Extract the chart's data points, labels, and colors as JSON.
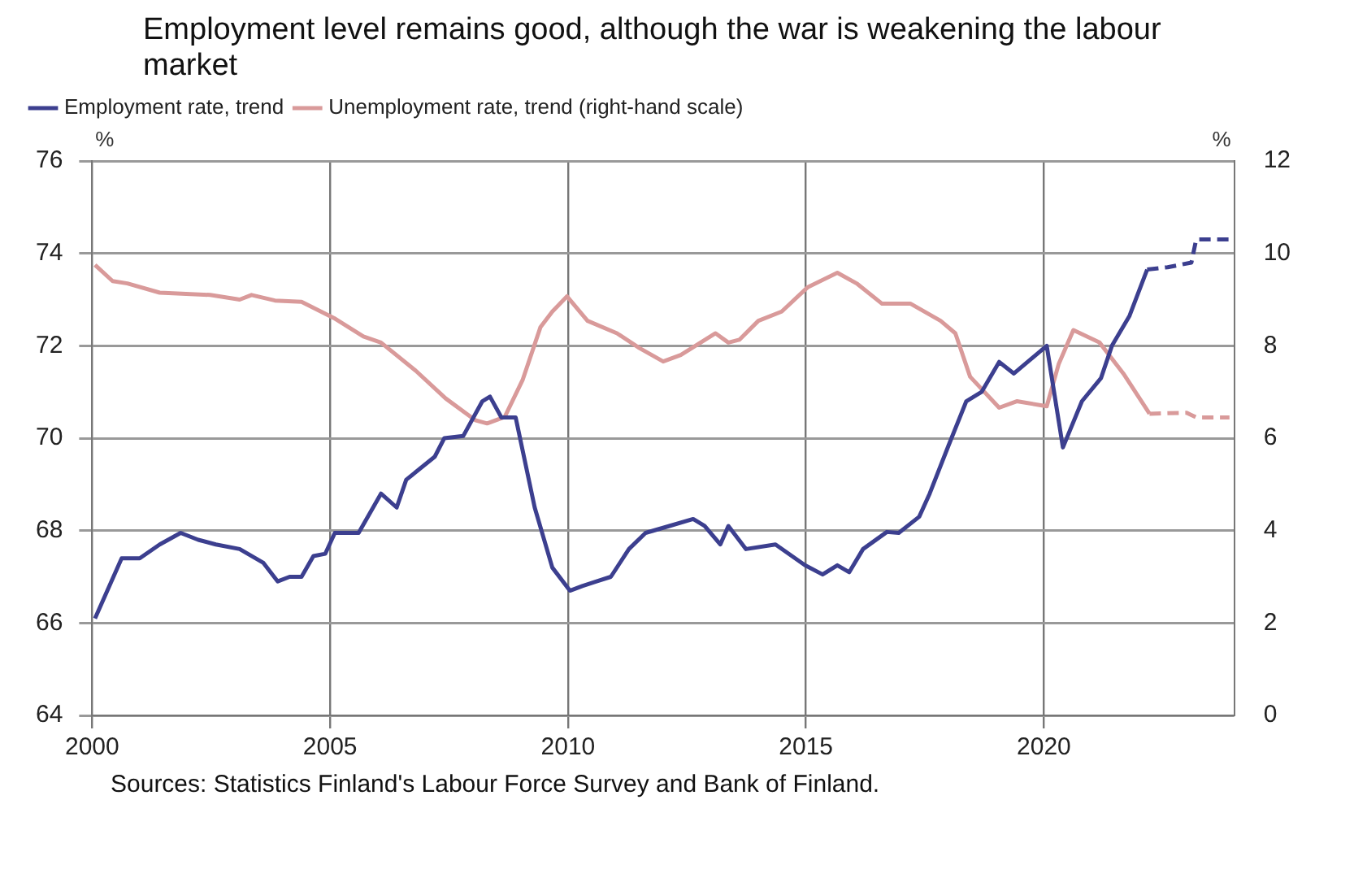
{
  "chart_data": {
    "type": "line",
    "title": "Employment level remains good, although the war is weakening the labour market",
    "ylabel": "%",
    "y2label": "%",
    "annotations": [
      "Sources: Statistics Finland's Labour Force Survey and Bank of Finland."
    ],
    "xlim": [
      2000,
      2024
    ],
    "xticks": [
      2000,
      2005,
      2010,
      2015,
      2020
    ],
    "ylim": [
      64,
      76
    ],
    "yticks": [
      64,
      66,
      68,
      70,
      72,
      74,
      76
    ],
    "y2lim": [
      0,
      12
    ],
    "y2ticks": [
      0,
      2,
      4,
      6,
      8,
      10,
      12
    ],
    "grid": true,
    "legend": "top left",
    "marker": "none",
    "series": [
      {
        "name": "Employment rate, trend",
        "color": "#3c3f8f",
        "line_style": "solid",
        "x": [
          2000.06,
          2000.62,
          2001.0,
          2001.42,
          2001.86,
          2002.23,
          2002.6,
          2003.1,
          2003.6,
          2003.9,
          2004.15,
          2004.4,
          2004.65,
          2004.9,
          2005.1,
          2005.6,
          2006.07,
          2006.4,
          2006.6,
          2007.2,
          2007.4,
          2007.8,
          2008.2,
          2008.36,
          2008.6,
          2008.9,
          2009.3,
          2009.67,
          2010.04,
          2010.3,
          2010.6,
          2010.9,
          2011.28,
          2011.63,
          2012.13,
          2012.63,
          2012.87,
          2013.2,
          2013.37,
          2013.74,
          2014.36,
          2014.98,
          2015.35,
          2015.66,
          2015.91,
          2016.2,
          2016.7,
          2016.95,
          2017.38,
          2017.6,
          2018.0,
          2018.37,
          2018.69,
          2019.06,
          2019.37,
          2020.06,
          2020.4,
          2020.8,
          2021.2,
          2021.43,
          2021.8,
          2022.17
        ],
        "values": [
          66.1,
          67.4,
          67.4,
          67.7,
          67.95,
          67.8,
          67.7,
          67.6,
          67.3,
          66.9,
          67.0,
          67.0,
          67.45,
          67.5,
          67.95,
          67.95,
          68.8,
          68.5,
          69.1,
          69.6,
          70.0,
          70.05,
          70.8,
          70.9,
          70.45,
          70.45,
          68.5,
          67.2,
          66.7,
          66.8,
          66.9,
          67.0,
          67.6,
          67.95,
          68.1,
          68.25,
          68.1,
          67.7,
          68.1,
          67.6,
          67.7,
          67.25,
          67.05,
          67.25,
          67.1,
          67.6,
          67.97,
          67.95,
          68.3,
          68.8,
          69.85,
          70.8,
          71.0,
          71.65,
          71.4,
          72.0,
          69.8,
          70.8,
          71.3,
          72.0,
          72.65,
          73.65
        ]
      },
      {
        "name": "Unemployment rate, trend (right-hand scale)",
        "color": "#d99a9a",
        "line_style": "solid",
        "axis": "y2",
        "x": [
          2000.06,
          2000.43,
          2000.74,
          2001.42,
          2002.48,
          2003.1,
          2003.35,
          2003.84,
          2004.4,
          2005.08,
          2005.7,
          2006.07,
          2006.8,
          2007.43,
          2008.05,
          2008.3,
          2008.67,
          2009.05,
          2009.42,
          2009.67,
          2009.98,
          2010.41,
          2011.03,
          2011.5,
          2012.0,
          2012.37,
          2013.1,
          2013.37,
          2013.6,
          2014.0,
          2014.49,
          2015.04,
          2015.66,
          2016.08,
          2016.6,
          2017.2,
          2017.83,
          2018.14,
          2018.45,
          2019.06,
          2019.43,
          2020.06,
          2020.31,
          2020.62,
          2021.17,
          2021.67,
          2022.22
        ],
        "values": [
          9.75,
          9.4,
          9.35,
          9.15,
          9.1,
          9.0,
          9.1,
          8.98,
          8.95,
          8.6,
          8.2,
          8.07,
          7.46,
          6.86,
          6.39,
          6.32,
          6.46,
          7.27,
          8.4,
          8.74,
          9.07,
          8.54,
          8.27,
          7.95,
          7.66,
          7.8,
          8.27,
          8.07,
          8.13,
          8.54,
          8.74,
          9.27,
          9.58,
          9.34,
          8.91,
          8.91,
          8.54,
          8.27,
          7.33,
          6.66,
          6.8,
          6.69,
          7.6,
          8.34,
          8.07,
          7.4,
          6.53
        ]
      },
      {
        "color": "#3c3f8f",
        "line_style": "dashed",
        "x": [
          2022.17,
          2022.6,
          2023.1,
          2023.2,
          2023.9
        ],
        "values": [
          73.65,
          73.7,
          73.8,
          74.3,
          74.3
        ]
      },
      {
        "color": "#d99a9a",
        "line_style": "dashed",
        "axis": "y2",
        "x": [
          2022.22,
          2023.0,
          2023.2,
          2023.9
        ],
        "values": [
          6.53,
          6.55,
          6.45,
          6.45
        ]
      }
    ]
  }
}
